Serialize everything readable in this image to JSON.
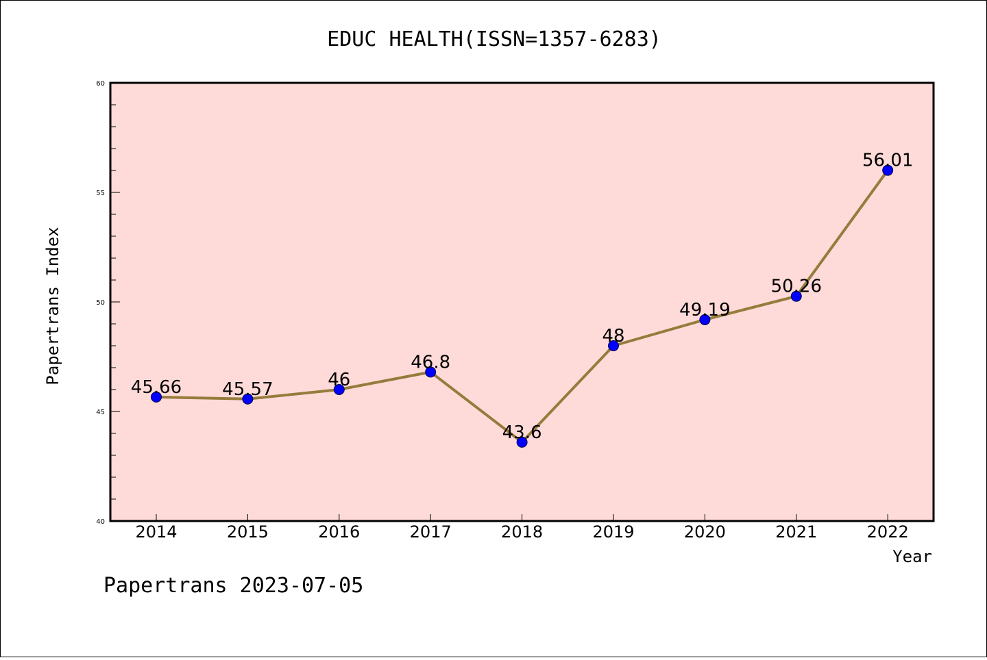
{
  "chart_data": {
    "type": "line",
    "title": "EDUC HEALTH(ISSN=1357-6283)",
    "xlabel": "Year",
    "ylabel": "Papertrans Index",
    "categories": [
      "2014",
      "2015",
      "2016",
      "2017",
      "2018",
      "2019",
      "2020",
      "2021",
      "2022"
    ],
    "values": [
      45.66,
      45.57,
      46,
      46.8,
      43.6,
      48,
      49.19,
      50.26,
      56.01
    ],
    "value_labels": [
      "45.66",
      "45.57",
      "46",
      "46.8",
      "43.6",
      "48",
      "49.19",
      "50.26",
      "56.01"
    ],
    "ylim": [
      40,
      60
    ],
    "yticks": [
      "40",
      "45",
      "50",
      "55",
      "60"
    ],
    "grid": false,
    "legend": "none",
    "colors": {
      "plot_background": "#fedbd8",
      "line": "#967c3c",
      "marker": "#0000ff"
    }
  },
  "footer": "Papertrans 2023-07-05"
}
